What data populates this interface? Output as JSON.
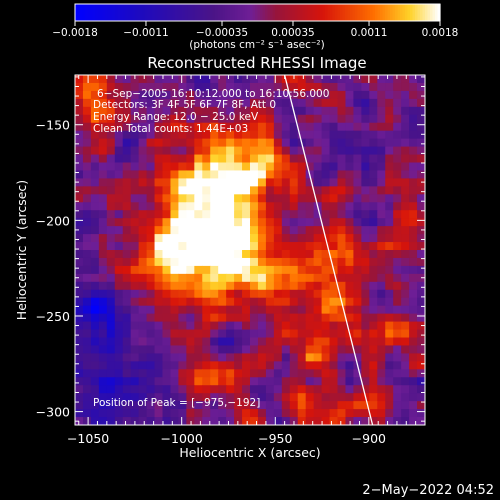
{
  "chart_data": {
    "type": "heatmap",
    "title": "Reconstructed RHESSI Image",
    "xlabel": "Heliocentric X (arcsec)",
    "ylabel": "Heliocentric Y (arcsec)",
    "xlim": [
      -1057,
      -870
    ],
    "ylim": [
      -307,
      -124
    ],
    "x_ticks": [
      -1050,
      -1000,
      -950,
      -900
    ],
    "x_tick_labels": [
      "−1050",
      "−1000",
      "−950",
      "−900"
    ],
    "y_ticks": [
      -300,
      -250,
      -200,
      -150
    ],
    "y_tick_labels": [
      "−300",
      "−250",
      "−200",
      "−150"
    ],
    "colorbar": {
      "range": [
        -0.0018,
        0.0018
      ],
      "ticks": [
        -0.0018,
        -0.0011,
        -0.00035,
        0.00035,
        0.0011,
        0.0018
      ],
      "tick_labels": [
        "−0.0018",
        "−0.0011",
        "−0.00035",
        "0.00035",
        "0.0011",
        "0.0018"
      ],
      "unit_label": "(photons cm⁻² s⁻¹ asec⁻²)"
    },
    "annotations": {
      "time": "6−Sep−2005 16:10:12.000 to 16:10:56.000",
      "detectors": "Detectors: 3F 4F 5F 6F 7F 8F, Att 0",
      "energy": "Energy Range: 12.0 − 25.0 keV",
      "clean": "Clean    Total counts: 1.44E+03",
      "peak": "Position of Peak = [−975,−192]"
    },
    "peak": {
      "x": -975,
      "y": -192
    },
    "limb_line": [
      {
        "x": -945,
        "y": -124
      },
      {
        "x": -898,
        "y": -307
      }
    ],
    "blobs": [
      {
        "x": -985,
        "y": -195,
        "sx": 22,
        "sy": 26,
        "amp": 0.00215
      },
      {
        "x": -965,
        "y": -168,
        "sx": 14,
        "sy": 12,
        "amp": 0.0011
      },
      {
        "x": -1003,
        "y": -222,
        "sx": 18,
        "sy": 16,
        "amp": 0.00095
      },
      {
        "x": -1048,
        "y": -140,
        "sx": 9,
        "sy": 16,
        "amp": 0.0012
      },
      {
        "x": -955,
        "y": -230,
        "sx": 22,
        "sy": 14,
        "amp": 0.00085
      },
      {
        "x": -918,
        "y": -225,
        "sx": 16,
        "sy": 18,
        "amp": 0.00105
      },
      {
        "x": -880,
        "y": -195,
        "sx": 10,
        "sy": 18,
        "amp": 0.0008
      },
      {
        "x": -878,
        "y": -258,
        "sx": 10,
        "sy": 10,
        "amp": 0.0007
      },
      {
        "x": -925,
        "y": -268,
        "sx": 26,
        "sy": 10,
        "amp": 0.00075
      },
      {
        "x": -990,
        "y": -283,
        "sx": 20,
        "sy": 10,
        "amp": 0.0009
      },
      {
        "x": -920,
        "y": -300,
        "sx": 20,
        "sy": 8,
        "amp": 0.0011
      },
      {
        "x": -1030,
        "y": -232,
        "sx": 12,
        "sy": 12,
        "amp": 0.0006
      },
      {
        "x": -1045,
        "y": -250,
        "sx": 12,
        "sy": 14,
        "amp": -0.0011
      },
      {
        "x": -1018,
        "y": -285,
        "sx": 16,
        "sy": 12,
        "amp": -0.0009
      },
      {
        "x": -1045,
        "y": -300,
        "sx": 14,
        "sy": 10,
        "amp": -0.0005
      },
      {
        "x": -905,
        "y": -160,
        "sx": 12,
        "sy": 10,
        "amp": -0.0004
      },
      {
        "x": -935,
        "y": -130,
        "sx": 20,
        "sy": 8,
        "amp": 0.0004
      }
    ]
  },
  "footer": {
    "timestamp": "2−May−2022 04:52"
  }
}
